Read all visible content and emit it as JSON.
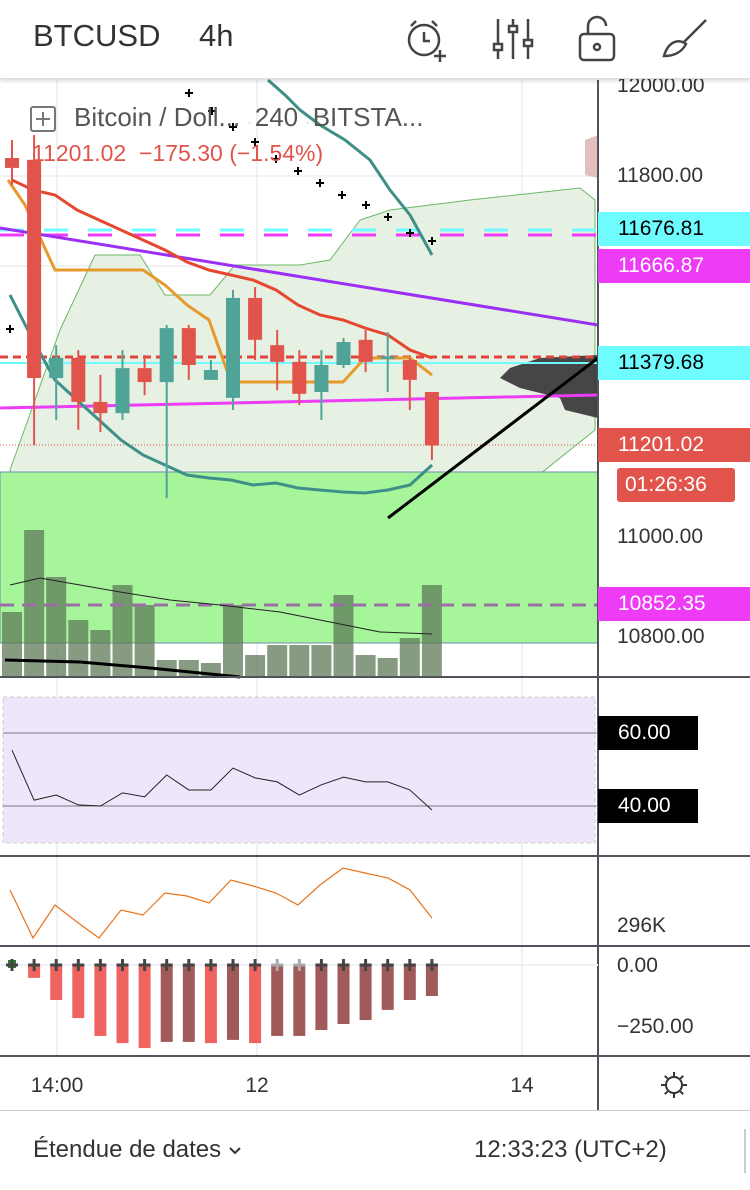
{
  "header": {
    "symbol": "BTCUSD",
    "interval": "4h",
    "icons": [
      "alarm-clock-add-icon",
      "indicators-sliders-icon",
      "unlock-icon",
      "drawing-brush-icon"
    ]
  },
  "legend": {
    "name": "Bitcoin / Doll...",
    "interval": "240",
    "exchange": "BITSTA...",
    "last": "11201.02",
    "change": "−175.30",
    "change_pct": "(−1.54%)"
  },
  "price_axis": {
    "labels": [
      "12000.00",
      "11800.00",
      "11000.00",
      "10800.00"
    ],
    "tags": [
      {
        "text": "11676.81",
        "bg": "#6ffcff",
        "fg": "#000000"
      },
      {
        "text": "11666.87",
        "bg": "#ee3cf6",
        "fg": "#ffffff"
      },
      {
        "text": "11379.68",
        "bg": "#6ffcff",
        "fg": "#000000"
      },
      {
        "text": "11201.02",
        "bg": "#e0544c",
        "fg": "#ffffff"
      },
      {
        "text": "01:26:36",
        "bg": "#e0544c",
        "fg": "#ffffff"
      },
      {
        "text": "10852.35",
        "bg": "#ee3cf6",
        "fg": "#ffffff"
      }
    ]
  },
  "rsi": {
    "upper": "60.00",
    "lower": "40.00",
    "values": [
      55.3,
      41.6,
      43,
      40.3,
      40,
      43.6,
      42.5,
      48.5,
      44.4,
      44.4,
      50.4,
      47.7,
      46.6,
      43,
      45.8,
      47.9,
      46.6,
      46.6,
      44.4,
      38.9
    ]
  },
  "volume_pane": {
    "label": "296K"
  },
  "macd": {
    "zero": "0.00",
    "low": "−250.00",
    "histogram": [
      0,
      -52,
      -141,
      -214,
      -286,
      -315,
      -335,
      -310,
      -310,
      -315,
      -302,
      -315,
      -286,
      -286,
      -262,
      -238,
      -222,
      -181,
      -141,
      -125
    ],
    "bright": [
      false,
      true,
      true,
      true,
      true,
      true,
      true,
      false,
      false,
      true,
      false,
      true,
      false,
      false,
      false,
      false,
      false,
      false,
      false,
      false
    ]
  },
  "time_axis": [
    "14:00",
    "12",
    "14"
  ],
  "candles": [
    {
      "o": 11840,
      "h": 11880,
      "l": 11780,
      "c": 11818
    },
    {
      "o": 11836,
      "h": 11891,
      "l": 11202,
      "c": 11351
    },
    {
      "o": 11351,
      "h": 11424,
      "l": 11258,
      "c": 11396
    },
    {
      "o": 11396,
      "h": 11413,
      "l": 11236,
      "c": 11298
    },
    {
      "o": 11298,
      "h": 11358,
      "l": 11231,
      "c": 11273
    },
    {
      "o": 11273,
      "h": 11413,
      "l": 11258,
      "c": 11373
    },
    {
      "o": 11373,
      "h": 11402,
      "l": 11313,
      "c": 11342
    },
    {
      "o": 11342,
      "h": 11469,
      "l": 11084,
      "c": 11462
    },
    {
      "o": 11462,
      "h": 11469,
      "l": 11347,
      "c": 11380
    },
    {
      "o": 11347,
      "h": 11391,
      "l": 11347,
      "c": 11369
    },
    {
      "o": 11307,
      "h": 11547,
      "l": 11280,
      "c": 11529
    },
    {
      "o": 11529,
      "h": 11553,
      "l": 11391,
      "c": 11436
    },
    {
      "o": 11424,
      "h": 11458,
      "l": 11324,
      "c": 11387
    },
    {
      "o": 11387,
      "h": 11413,
      "l": 11291,
      "c": 11316
    },
    {
      "o": 11320,
      "h": 11413,
      "l": 11258,
      "c": 11380
    },
    {
      "o": 11380,
      "h": 11440,
      "l": 11373,
      "c": 11431
    },
    {
      "o": 11436,
      "h": 11458,
      "l": 11364,
      "c": 11387
    },
    {
      "o": 11393,
      "h": 11453,
      "l": 11320,
      "c": 11399
    },
    {
      "o": 11391,
      "h": 11396,
      "l": 11280,
      "c": 11347
    },
    {
      "o": 11320,
      "h": 11320,
      "l": 11169,
      "c": 11201.02
    }
  ],
  "colors": {
    "up": "#4fa397",
    "down": "#e0544c",
    "cloud": "#e6f1e4",
    "zone": "#a6f59a",
    "rsi_bg": "#efe6fb"
  },
  "footer": {
    "range_label": "Étendue de dates",
    "clock": "12:33:23 (UTC+2)"
  }
}
